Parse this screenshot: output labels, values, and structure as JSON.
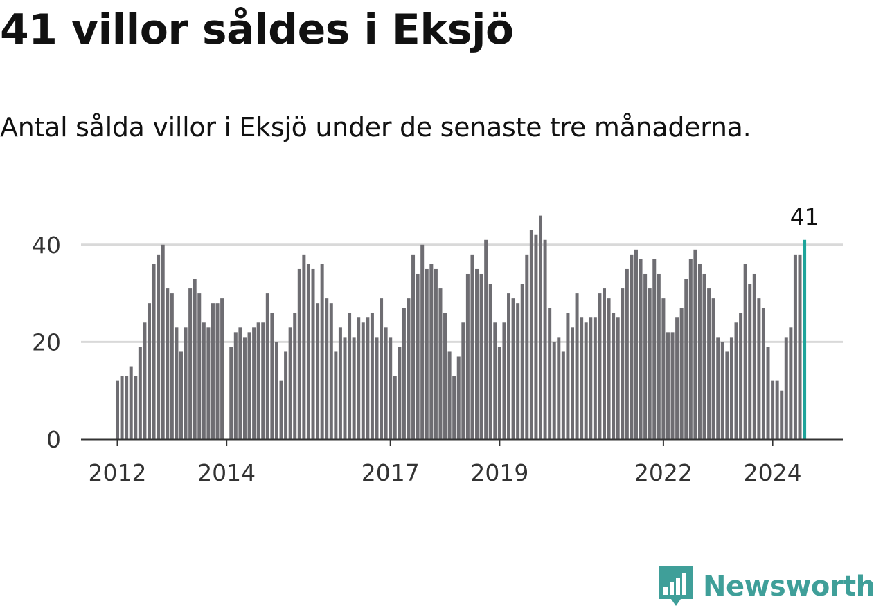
{
  "header": {
    "title": "41 villor såldes i Eksjö",
    "subtitle": "Antal sålda villor i Eksjö under de senaste tre månaderna."
  },
  "colors": {
    "bar": "#6e6d72",
    "highlight": "#1ea49a",
    "grid": "#d9d9d9",
    "axis": "#333333",
    "brand": "#3f9f99"
  },
  "chart_data": {
    "type": "bar",
    "title": "41 villor såldes i Eksjö",
    "subtitle": "Antal sålda villor i Eksjö under de senaste tre månaderna.",
    "xlabel": "",
    "ylabel": "",
    "ylim": [
      0,
      46
    ],
    "yticks": [
      0,
      20,
      40
    ],
    "grid": true,
    "x_start": "2012-01",
    "x_step": "month",
    "xtick_labels": [
      {
        "label": "2012",
        "index": 0
      },
      {
        "label": "2014",
        "index": 24
      },
      {
        "label": "2017",
        "index": 60
      },
      {
        "label": "2019",
        "index": 84
      },
      {
        "label": "2022",
        "index": 120
      },
      {
        "label": "2024",
        "index": 144
      }
    ],
    "values": [
      12,
      13,
      13,
      15,
      13,
      19,
      24,
      28,
      36,
      38,
      40,
      31,
      30,
      23,
      18,
      23,
      31,
      33,
      30,
      24,
      23,
      28,
      28,
      29,
      0,
      19,
      22,
      23,
      21,
      22,
      23,
      24,
      24,
      30,
      26,
      20,
      12,
      18,
      23,
      26,
      35,
      38,
      36,
      35,
      28,
      36,
      29,
      28,
      18,
      23,
      21,
      26,
      21,
      25,
      24,
      25,
      26,
      21,
      29,
      23,
      21,
      13,
      19,
      27,
      29,
      38,
      34,
      40,
      35,
      36,
      35,
      31,
      26,
      18,
      13,
      17,
      24,
      34,
      38,
      35,
      34,
      41,
      32,
      24,
      19,
      24,
      30,
      29,
      28,
      32,
      38,
      43,
      42,
      46,
      41,
      27,
      20,
      21,
      18,
      26,
      23,
      30,
      25,
      24,
      25,
      25,
      30,
      31,
      29,
      26,
      25,
      31,
      35,
      38,
      39,
      37,
      34,
      31,
      37,
      34,
      29,
      22,
      22,
      25,
      27,
      33,
      37,
      39,
      36,
      34,
      31,
      29,
      21,
      20,
      18,
      21,
      24,
      26,
      36,
      32,
      34,
      29,
      27,
      19,
      12,
      12,
      10,
      21,
      23,
      38,
      38,
      41
    ],
    "highlight_last": true,
    "last_value_label": "41"
  },
  "logo": {
    "icon": "newsworthy-chart-icon",
    "text": "Newsworthy"
  }
}
